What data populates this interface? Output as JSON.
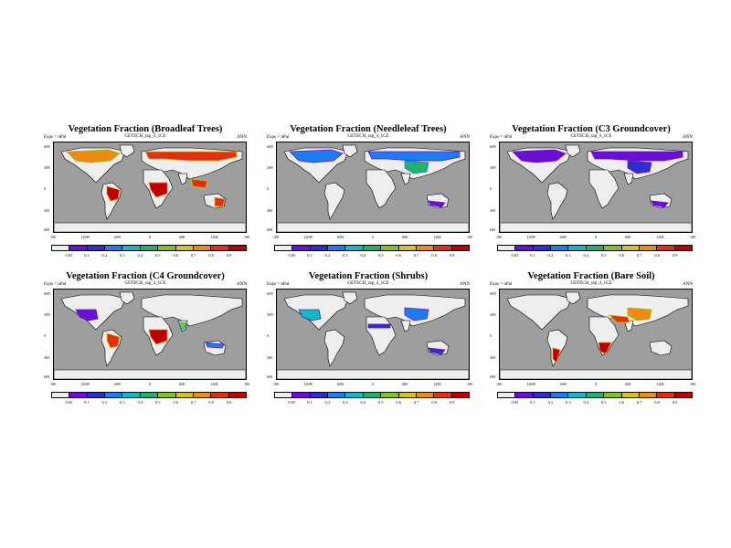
{
  "colors": {
    "ocean": "#9e9e9e",
    "land_low": "#eeeeee",
    "coast": "#000000",
    "levels": [
      "#eeeeee",
      "#6a0fd6",
      "#2e2ecc",
      "#1f7cf0",
      "#16b7c4",
      "#22b06a",
      "#7fc31f",
      "#d8c318",
      "#f08a10",
      "#e0300e",
      "#c00000"
    ]
  },
  "colorbar": {
    "tick_labels": [
      "0.05",
      "0.1",
      "0.2",
      "0.3",
      "0.4",
      "0.5",
      "0.6",
      "0.7",
      "0.8",
      "0.9"
    ]
  },
  "common": {
    "left_label": "Exps = nPal",
    "right_label": "ANN",
    "lat_labels": [
      "60N",
      "30N",
      "0",
      "30S",
      "60S"
    ],
    "lon_labels": [
      "180",
      "120W",
      "60W",
      "0",
      "60E",
      "120E",
      "180"
    ]
  },
  "panels": [
    {
      "title": "Vegetation Fraction (Broadleaf Trees)",
      "subtitle": "GETECH_rap_4_1CE",
      "regions": [
        {
          "shape": "na-boreal",
          "level": 8
        },
        {
          "shape": "eurasia-boreal",
          "level": 9
        },
        {
          "shape": "amazon",
          "level": 10
        },
        {
          "shape": "africa-forest",
          "level": 10
        },
        {
          "shape": "se-asia",
          "level": 9
        },
        {
          "shape": "australia-e",
          "level": 9
        }
      ]
    },
    {
      "title": "Vegetation Fraction (Needleleaf Trees)",
      "subtitle": "GETECH_rap_4_1CE",
      "regions": [
        {
          "shape": "na-boreal",
          "level": 3
        },
        {
          "shape": "eurasia-boreal",
          "level": 3
        },
        {
          "shape": "central-asia",
          "level": 5
        },
        {
          "shape": "australia-s",
          "level": 1
        }
      ]
    },
    {
      "title": "Vegetation Fraction (C3 Groundcover)",
      "subtitle": "GETECH_rap_4_1CE",
      "regions": [
        {
          "shape": "na-boreal",
          "level": 1
        },
        {
          "shape": "eurasia-boreal",
          "level": 1
        },
        {
          "shape": "central-asia",
          "level": 2
        },
        {
          "shape": "australia-s",
          "level": 1
        }
      ]
    },
    {
      "title": "Vegetation Fraction (C4 Groundcover)",
      "subtitle": "GETECH_rap_4_1CE",
      "regions": [
        {
          "shape": "na-west",
          "level": 1
        },
        {
          "shape": "amazon",
          "level": 9
        },
        {
          "shape": "africa-forest",
          "level": 10
        },
        {
          "shape": "india",
          "level": 6
        },
        {
          "shape": "australia-n",
          "level": 3
        }
      ]
    },
    {
      "title": "Vegetation Fraction (Shrubs)",
      "subtitle": "GETECH_rap_4_1CE",
      "regions": [
        {
          "shape": "na-west",
          "level": 4
        },
        {
          "shape": "central-asia",
          "level": 3
        },
        {
          "shape": "africa-sahel",
          "level": 2
        },
        {
          "shape": "australia-s",
          "level": 2
        }
      ]
    },
    {
      "title": "Vegetation Fraction (Bare Soil)",
      "subtitle": "GETECH_rap_4_1CE",
      "regions": [
        {
          "shape": "middle-east",
          "level": 9
        },
        {
          "shape": "central-asia",
          "level": 8
        },
        {
          "shape": "sa-south",
          "level": 10
        },
        {
          "shape": "africa-south",
          "level": 10
        }
      ]
    }
  ]
}
